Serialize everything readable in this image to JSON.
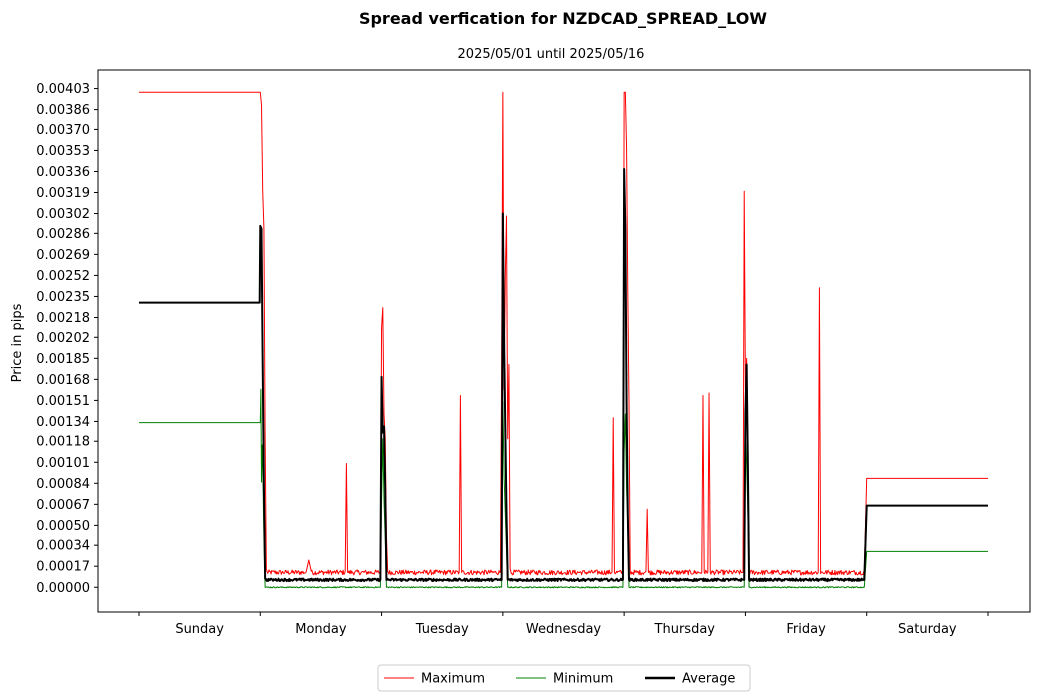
{
  "chart_data": {
    "type": "line",
    "title": "Spread verfication for NZDCAD_SPREAD_LOW",
    "subtitle": "2025/05/01 until 2025/05/16",
    "ylabel": "Price in pips",
    "xlabel": "",
    "x_range": [
      0,
      7
    ],
    "ylim": [
      -0.0002,
      0.00418
    ],
    "y_ticks": [
      "0.00000",
      "0.00017",
      "0.00034",
      "0.00050",
      "0.00067",
      "0.00084",
      "0.00101",
      "0.00118",
      "0.00134",
      "0.00151",
      "0.00168",
      "0.00185",
      "0.00202",
      "0.00218",
      "0.00235",
      "0.00252",
      "0.00269",
      "0.00286",
      "0.00302",
      "0.00319",
      "0.00336",
      "0.00353",
      "0.00370",
      "0.00386",
      "0.00403"
    ],
    "x_ticks": [
      "Sunday",
      "Monday",
      "Tuesday",
      "Wednesday",
      "Thursday",
      "Friday",
      "Saturday"
    ],
    "legend_position": "bottom-center",
    "grid": false,
    "series": [
      {
        "name": "Maximum",
        "color": "#ff0000",
        "width": 1,
        "base": 0.00012,
        "noise": 2e-05,
        "points": [
          [
            0,
            0.004
          ],
          [
            0.995,
            0.004
          ],
          [
            1.0,
            0.004
          ],
          [
            1.01,
            0.0039
          ],
          [
            1.02,
            0.0032
          ],
          [
            1.03,
            0.0029
          ],
          [
            1.04,
            0.0012
          ],
          [
            1.05,
            0.00015
          ],
          [
            1.1,
            0.00013
          ],
          [
            1.38,
            0.00013
          ],
          [
            1.4,
            0.00022
          ],
          [
            1.42,
            0.00013
          ],
          [
            1.7,
            0.00013
          ],
          [
            1.71,
            0.001
          ],
          [
            1.72,
            0.00012
          ],
          [
            1.99,
            0.00012
          ],
          [
            2.0,
            0.0021
          ],
          [
            2.01,
            0.00226
          ],
          [
            2.02,
            0.0014
          ],
          [
            2.03,
            0.0012
          ],
          [
            2.04,
            0.00042
          ],
          [
            2.05,
            0.00013
          ],
          [
            2.64,
            0.00012
          ],
          [
            2.65,
            0.00155
          ],
          [
            2.66,
            0.00012
          ],
          [
            2.98,
            0.00012
          ],
          [
            2.99,
            0.0018
          ],
          [
            3.0,
            0.004
          ],
          [
            3.01,
            0.0016
          ],
          [
            3.02,
            0.0025
          ],
          [
            3.03,
            0.003
          ],
          [
            3.04,
            0.0012
          ],
          [
            3.05,
            0.0018
          ],
          [
            3.06,
            0.00015
          ],
          [
            3.07,
            0.00011
          ],
          [
            3.9,
            0.00012
          ],
          [
            3.91,
            0.00137
          ],
          [
            3.92,
            0.00012
          ],
          [
            3.99,
            0.00012
          ],
          [
            4.0,
            0.004
          ],
          [
            4.01,
            0.004
          ],
          [
            4.02,
            0.00355
          ],
          [
            4.03,
            0.0024
          ],
          [
            4.04,
            0.0015
          ],
          [
            4.05,
            0.00013
          ],
          [
            4.18,
            0.00013
          ],
          [
            4.19,
            0.00063
          ],
          [
            4.2,
            0.00012
          ],
          [
            4.64,
            0.00012
          ],
          [
            4.65,
            0.00155
          ],
          [
            4.66,
            0.00012
          ],
          [
            4.69,
            0.00012
          ],
          [
            4.7,
            0.00157
          ],
          [
            4.71,
            0.00012
          ],
          [
            4.98,
            0.00012
          ],
          [
            4.99,
            0.0032
          ],
          [
            5.0,
            0.0016
          ],
          [
            5.01,
            0.00185
          ],
          [
            5.02,
            0.001
          ],
          [
            5.03,
            0.00012
          ],
          [
            5.6,
            0.00012
          ],
          [
            5.61,
            0.00242
          ],
          [
            5.62,
            0.00011
          ],
          [
            5.98,
            0.00012
          ],
          [
            6.0,
            0.00088
          ],
          [
            7.0,
            0.00088
          ]
        ]
      },
      {
        "name": "Minimum",
        "color": "#008000",
        "width": 1,
        "base": 0.0,
        "noise": 5e-06,
        "points": [
          [
            0,
            0.00133
          ],
          [
            1.0,
            0.00133
          ],
          [
            1.005,
            0.0016
          ],
          [
            1.01,
            0.00085
          ],
          [
            1.015,
            0.00115
          ],
          [
            1.02,
            0.001
          ],
          [
            1.03,
            0.0004
          ],
          [
            1.04,
            0.0
          ],
          [
            1.99,
            0.0
          ],
          [
            2.0,
            0.0007
          ],
          [
            2.01,
            0.0012
          ],
          [
            2.02,
            0.0007
          ],
          [
            2.03,
            0.0004
          ],
          [
            2.04,
            0.0
          ],
          [
            2.99,
            0.0
          ],
          [
            3.0,
            0.0015
          ],
          [
            3.01,
            0.0009
          ],
          [
            3.02,
            0.0006
          ],
          [
            3.03,
            0.0003
          ],
          [
            3.04,
            0.0
          ],
          [
            3.99,
            0.0
          ],
          [
            4.0,
            0.0011
          ],
          [
            4.01,
            0.0014
          ],
          [
            4.02,
            0.0008
          ],
          [
            4.03,
            0.0005
          ],
          [
            4.04,
            0.0
          ],
          [
            4.99,
            0.0
          ],
          [
            5.0,
            0.0012
          ],
          [
            5.01,
            0.001
          ],
          [
            5.02,
            0.0006
          ],
          [
            5.03,
            0.0
          ],
          [
            5.98,
            0.0
          ],
          [
            6.0,
            0.00029
          ],
          [
            7.0,
            0.00029
          ]
        ]
      },
      {
        "name": "Average",
        "color": "#000000",
        "width": 2,
        "base": 6e-05,
        "noise": 1e-05,
        "points": [
          [
            0,
            0.0023
          ],
          [
            0.995,
            0.0023
          ],
          [
            1.0,
            0.00292
          ],
          [
            1.01,
            0.0029
          ],
          [
            1.02,
            0.0018
          ],
          [
            1.03,
            0.0008
          ],
          [
            1.04,
            7e-05
          ],
          [
            1.1,
            6e-05
          ],
          [
            1.99,
            6e-05
          ],
          [
            2.0,
            0.0017
          ],
          [
            2.01,
            0.00125
          ],
          [
            2.02,
            0.0013
          ],
          [
            2.03,
            0.0008
          ],
          [
            2.04,
            6e-05
          ],
          [
            2.99,
            6e-05
          ],
          [
            3.0,
            0.00302
          ],
          [
            3.01,
            0.002
          ],
          [
            3.02,
            0.0013
          ],
          [
            3.03,
            0.0006
          ],
          [
            3.04,
            6e-05
          ],
          [
            3.99,
            6e-05
          ],
          [
            4.0,
            0.00338
          ],
          [
            4.01,
            0.0029
          ],
          [
            4.02,
            0.0015
          ],
          [
            4.03,
            0.0006
          ],
          [
            4.04,
            6e-05
          ],
          [
            4.99,
            6e-05
          ],
          [
            5.0,
            0.00141
          ],
          [
            5.01,
            0.0018
          ],
          [
            5.02,
            0.001
          ],
          [
            5.03,
            6e-05
          ],
          [
            5.98,
            6e-05
          ],
          [
            6.0,
            0.00066
          ],
          [
            7.0,
            0.00066
          ]
        ]
      }
    ]
  }
}
